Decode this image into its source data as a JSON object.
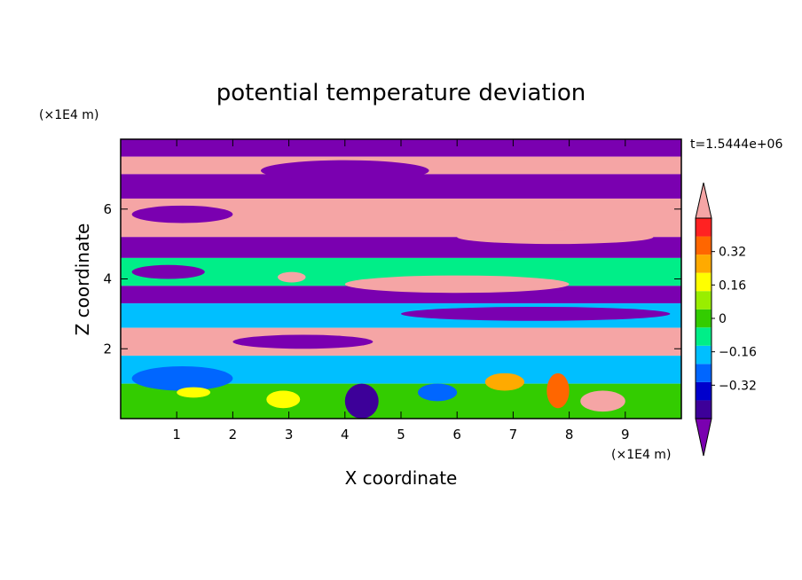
{
  "chart_data": {
    "type": "heatmap",
    "title": "potential temperature deviation",
    "xlabel": "X coordinate",
    "ylabel": "Z coordinate",
    "x_unit": "(×1E4 m)",
    "y_unit": "(×1E4 m)",
    "time_label": "t=1.5444e+06",
    "x_range": [
      0,
      10
    ],
    "y_range": [
      0,
      8
    ],
    "x_ticks": [
      1,
      2,
      3,
      4,
      5,
      6,
      7,
      8,
      9
    ],
    "y_ticks": [
      2,
      4,
      6
    ],
    "colorbar": {
      "levels": [
        -0.48,
        -0.4,
        -0.32,
        -0.24,
        -0.16,
        -0.08,
        0,
        0.08,
        0.16,
        0.24,
        0.32,
        0.4,
        0.48
      ],
      "labels": [
        "0.32",
        "0.16",
        "0",
        "−0.16",
        "−0.32"
      ],
      "label_values": [
        0.32,
        0.16,
        0,
        -0.16,
        -0.32
      ],
      "colors": [
        "#7a00b0",
        "#3d0099",
        "#0000cc",
        "#0066ff",
        "#00bfff",
        "#00ee88",
        "#33cc00",
        "#99ee00",
        "#ffff00",
        "#ffaa00",
        "#ff6600",
        "#ff2222",
        "#f5a5a5"
      ]
    },
    "bands": [
      {
        "z": [
          7.5,
          8.0
        ],
        "color": "#7a00b0"
      },
      {
        "z": [
          7.0,
          7.5
        ],
        "color": "#f5a5a5"
      },
      {
        "z": [
          6.3,
          7.0
        ],
        "color": "#7a00b0"
      },
      {
        "z": [
          5.2,
          6.3
        ],
        "color": "#f5a5a5"
      },
      {
        "z": [
          4.6,
          5.2
        ],
        "color": "#7a00b0"
      },
      {
        "z": [
          3.8,
          4.6
        ],
        "color": "#00ee88"
      },
      {
        "z": [
          3.3,
          3.8
        ],
        "color": "#7a00b0"
      },
      {
        "z": [
          2.6,
          3.3
        ],
        "color": "#00bfff"
      },
      {
        "z": [
          1.8,
          2.6
        ],
        "color": "#f5a5a5"
      },
      {
        "z": [
          1.0,
          1.8
        ],
        "color": "#00bfff"
      },
      {
        "z": [
          0.0,
          1.0
        ],
        "color": "#33cc00"
      }
    ],
    "features": [
      {
        "x": [
          2.5,
          5.5
        ],
        "z": [
          6.8,
          7.4
        ],
        "color": "#7a00b0"
      },
      {
        "x": [
          0.2,
          2.0
        ],
        "z": [
          5.6,
          6.1
        ],
        "color": "#7a00b0"
      },
      {
        "x": [
          6.0,
          9.5
        ],
        "z": [
          5.0,
          5.4
        ],
        "color": "#f5a5a5"
      },
      {
        "x": [
          4.0,
          8.0
        ],
        "z": [
          3.6,
          4.1
        ],
        "color": "#f5a5a5"
      },
      {
        "x": [
          2.8,
          3.3
        ],
        "z": [
          3.9,
          4.2
        ],
        "color": "#f5a5a5"
      },
      {
        "x": [
          0.2,
          1.5
        ],
        "z": [
          4.0,
          4.4
        ],
        "color": "#7a00b0"
      },
      {
        "x": [
          5.0,
          9.8
        ],
        "z": [
          2.8,
          3.2
        ],
        "color": "#7a00b0"
      },
      {
        "x": [
          2.0,
          4.5
        ],
        "z": [
          2.0,
          2.4
        ],
        "color": "#7a00b0"
      },
      {
        "x": [
          0.2,
          2.0
        ],
        "z": [
          0.8,
          1.5
        ],
        "color": "#0066ff"
      },
      {
        "x": [
          1.0,
          1.6
        ],
        "z": [
          0.6,
          0.9
        ],
        "color": "#ffff00"
      },
      {
        "x": [
          4.0,
          4.6
        ],
        "z": [
          0.0,
          1.0
        ],
        "color": "#3d0099"
      },
      {
        "x": [
          5.3,
          6.0
        ],
        "z": [
          0.5,
          1.0
        ],
        "color": "#0066ff"
      },
      {
        "x": [
          7.6,
          8.0
        ],
        "z": [
          0.3,
          1.3
        ],
        "color": "#ff6600"
      },
      {
        "x": [
          8.2,
          9.0
        ],
        "z": [
          0.2,
          0.8
        ],
        "color": "#f5a5a5"
      },
      {
        "x": [
          6.5,
          7.2
        ],
        "z": [
          0.8,
          1.3
        ],
        "color": "#ffaa00"
      },
      {
        "x": [
          2.6,
          3.2
        ],
        "z": [
          0.3,
          0.8
        ],
        "color": "#ffff00"
      }
    ]
  }
}
